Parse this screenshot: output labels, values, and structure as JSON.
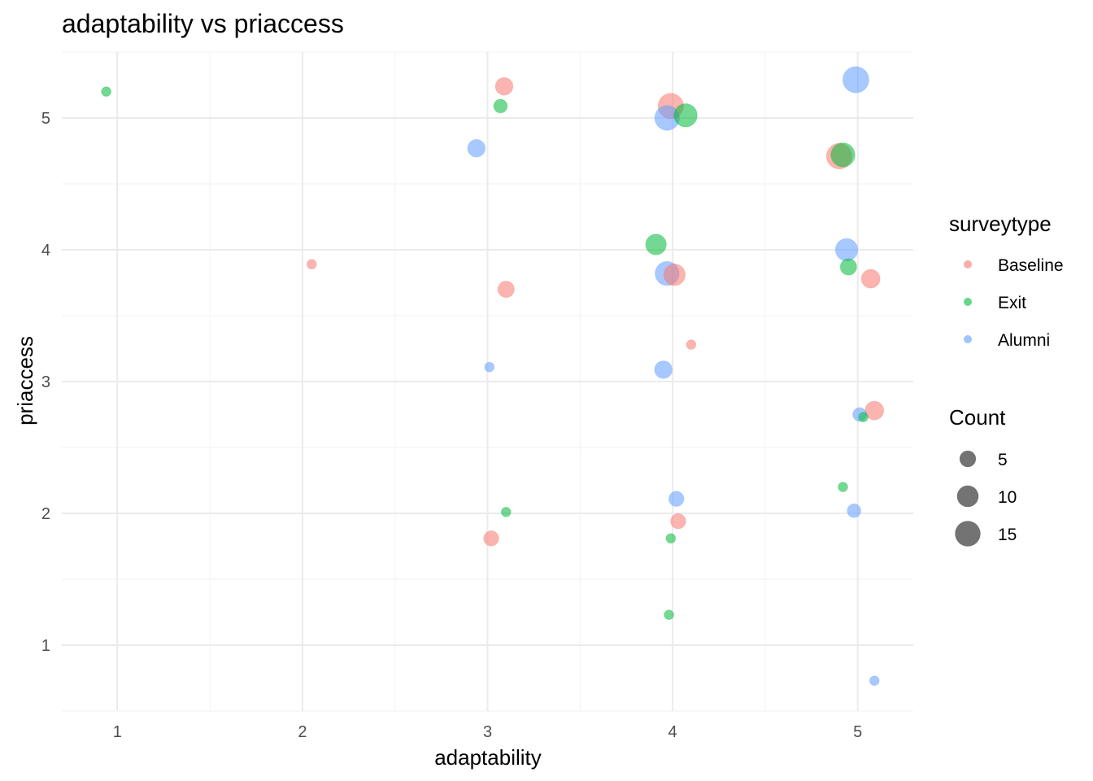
{
  "chart_data": {
    "type": "scatter",
    "title": "adaptability vs priaccess",
    "xlabel": "adaptability",
    "ylabel": "priaccess",
    "xlim": [
      0.7,
      5.3
    ],
    "ylim": [
      0.5,
      5.5
    ],
    "x_ticks": [
      1,
      2,
      3,
      4,
      5
    ],
    "y_ticks": [
      1,
      2,
      3,
      4,
      5
    ],
    "grid": true,
    "legend_position": "right",
    "color_legend": {
      "title": "surveytype",
      "entries": [
        {
          "name": "Baseline",
          "color": "#F8766D"
        },
        {
          "name": "Exit",
          "color": "#00BA38"
        },
        {
          "name": "Alumni",
          "color": "#619CFF"
        }
      ]
    },
    "size_legend": {
      "title": "Count",
      "entries": [
        {
          "label": "5",
          "value": 5
        },
        {
          "label": "10",
          "value": 10
        },
        {
          "label": "15",
          "value": 15
        }
      ]
    },
    "size_range": [
      1,
      17
    ],
    "series": [
      {
        "name": "Baseline",
        "points": [
          {
            "x": 2.05,
            "y": 3.89,
            "count": 1
          },
          {
            "x": 3.09,
            "y": 5.24,
            "count": 6
          },
          {
            "x": 3.1,
            "y": 3.7,
            "count": 5
          },
          {
            "x": 3.02,
            "y": 1.81,
            "count": 4
          },
          {
            "x": 3.99,
            "y": 5.09,
            "count": 15
          },
          {
            "x": 4.01,
            "y": 3.81,
            "count": 10
          },
          {
            "x": 4.1,
            "y": 3.28,
            "count": 1
          },
          {
            "x": 4.03,
            "y": 1.94,
            "count": 4
          },
          {
            "x": 4.9,
            "y": 4.71,
            "count": 15
          },
          {
            "x": 5.07,
            "y": 3.78,
            "count": 7
          },
          {
            "x": 5.09,
            "y": 2.78,
            "count": 7
          }
        ]
      },
      {
        "name": "Exit",
        "points": [
          {
            "x": 0.94,
            "y": 5.2,
            "count": 1
          },
          {
            "x": 3.07,
            "y": 5.09,
            "count": 3
          },
          {
            "x": 3.1,
            "y": 2.01,
            "count": 1
          },
          {
            "x": 4.07,
            "y": 5.02,
            "count": 12
          },
          {
            "x": 3.91,
            "y": 4.04,
            "count": 9
          },
          {
            "x": 3.99,
            "y": 1.81,
            "count": 1
          },
          {
            "x": 3.98,
            "y": 1.23,
            "count": 1
          },
          {
            "x": 4.92,
            "y": 4.72,
            "count": 13
          },
          {
            "x": 4.95,
            "y": 3.87,
            "count": 5
          },
          {
            "x": 5.03,
            "y": 2.73,
            "count": 1
          },
          {
            "x": 4.92,
            "y": 2.2,
            "count": 1
          }
        ]
      },
      {
        "name": "Alumni",
        "points": [
          {
            "x": 2.94,
            "y": 4.77,
            "count": 6
          },
          {
            "x": 3.01,
            "y": 3.11,
            "count": 1
          },
          {
            "x": 3.97,
            "y": 5.0,
            "count": 14
          },
          {
            "x": 3.97,
            "y": 3.82,
            "count": 13
          },
          {
            "x": 3.95,
            "y": 3.09,
            "count": 6
          },
          {
            "x": 4.02,
            "y": 2.11,
            "count": 4
          },
          {
            "x": 4.99,
            "y": 5.29,
            "count": 16
          },
          {
            "x": 4.94,
            "y": 4.0,
            "count": 11
          },
          {
            "x": 5.01,
            "y": 2.75,
            "count": 3
          },
          {
            "x": 4.98,
            "y": 2.02,
            "count": 3
          },
          {
            "x": 5.09,
            "y": 0.73,
            "count": 1
          }
        ]
      }
    ]
  }
}
